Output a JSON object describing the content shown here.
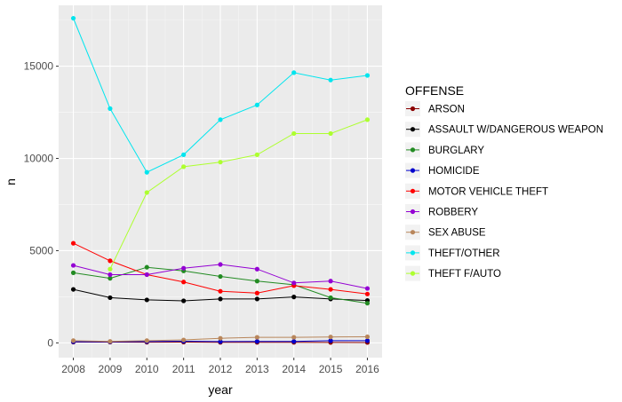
{
  "chart_data": {
    "type": "line",
    "xlabel": "year",
    "ylabel": "n",
    "legend_title": "OFFENSE",
    "legend_position": "right",
    "grid": true,
    "x": [
      2008,
      2009,
      2010,
      2011,
      2012,
      2013,
      2014,
      2015,
      2016
    ],
    "x_tick_labels": [
      "2008",
      "2009",
      "2010",
      "2011",
      "2012",
      "2013",
      "2014",
      "2015",
      "2016"
    ],
    "y_ticks": [
      0,
      5000,
      10000,
      15000
    ],
    "y_tick_labels": [
      "0",
      "5000",
      "10000",
      "15000"
    ],
    "ylim": [
      -800,
      18300
    ],
    "xlim": [
      2007.6,
      2016.4
    ],
    "series": [
      {
        "name": "ARSON",
        "color": "#8B0000",
        "values": [
          40,
          40,
          35,
          40,
          30,
          30,
          30,
          25,
          20
        ]
      },
      {
        "name": "ASSAULT W/DANGEROUS WEAPON",
        "color": "#000000",
        "values": [
          2900,
          2450,
          2330,
          2280,
          2380,
          2380,
          2490,
          2380,
          2300
        ]
      },
      {
        "name": "BURGLARY",
        "color": "#228B22",
        "values": [
          3800,
          3500,
          4100,
          3900,
          3600,
          3350,
          3150,
          2450,
          2150
        ]
      },
      {
        "name": "HOMICIDE",
        "color": "#0000CD",
        "values": [
          60,
          60,
          70,
          90,
          70,
          80,
          80,
          120,
          120
        ]
      },
      {
        "name": "MOTOR VEHICLE THEFT",
        "color": "#FF0000",
        "values": [
          5400,
          4450,
          3700,
          3300,
          2800,
          2700,
          3100,
          2900,
          2650
        ]
      },
      {
        "name": "ROBBERY",
        "color": "#9400D3",
        "values": [
          4200,
          3700,
          3700,
          4050,
          4250,
          4000,
          3250,
          3350,
          2950
        ]
      },
      {
        "name": "SEX ABUSE",
        "color": "#B8865B",
        "values": [
          120,
          80,
          120,
          160,
          250,
          300,
          300,
          320,
          330
        ]
      },
      {
        "name": "THEFT/OTHER",
        "color": "#00E5EE",
        "values": [
          17600,
          12700,
          9250,
          10200,
          12100,
          12900,
          14650,
          14250,
          14500
        ]
      },
      {
        "name": "THEFT F/AUTO",
        "color": "#ADFF2F",
        "values": [
          null,
          4000,
          8150,
          9550,
          9800,
          10200,
          11350,
          11350,
          12100
        ]
      }
    ]
  }
}
